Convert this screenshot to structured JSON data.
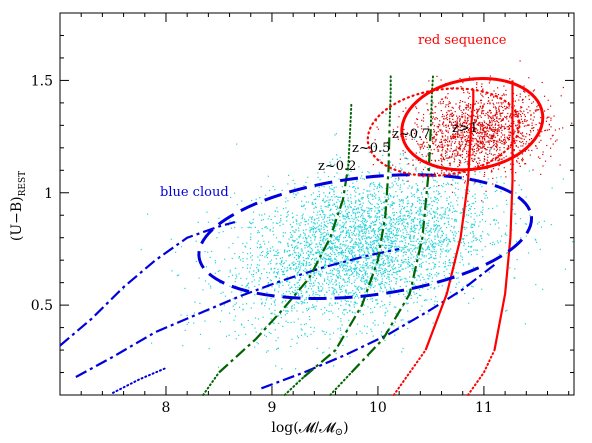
{
  "chart_data": {
    "type": "scatter",
    "title": "",
    "xlabel": "log(𝓜/𝓜",
    "xlabel_sub": "⊙",
    "xlabel_close": ")",
    "ylabel": "(U−B)",
    "ylabel_sub": "REST",
    "xlim": [
      7.0,
      11.85
    ],
    "ylim": [
      0.1,
      1.8
    ],
    "xticks": [
      "8",
      "9",
      "10",
      "11"
    ],
    "xtick_values": [
      8,
      9,
      10,
      11
    ],
    "yticks": [
      "0.5",
      "1",
      "1.5"
    ],
    "ytick_values": [
      0.5,
      1.0,
      1.5
    ],
    "grid": false,
    "colors": {
      "blue_cloud": "#0000dd",
      "blue_points": "#22d3d8",
      "red_sequence": "#ff0000",
      "red_points": "#dd0000",
      "green_tracks": "#006400"
    },
    "annotations": {
      "red_sequence": "red sequence",
      "blue_cloud": "blue cloud",
      "z1": "z~0.2",
      "z2": "z~0.5",
      "z3": "z~0.7",
      "z4": "z>1"
    },
    "ellipses": [
      {
        "name": "blue cloud",
        "color": "#0000dd",
        "style": "dashed",
        "cx": 9.88,
        "cy": 0.805,
        "rx": 1.58,
        "ry": 0.262,
        "angle_deg": 7
      },
      {
        "name": "red sequence",
        "color": "#ff0000",
        "style": "solid",
        "cx": 10.89,
        "cy": 1.305,
        "rx": 0.67,
        "ry": 0.2,
        "angle_deg": 9
      },
      {
        "name": "red sequence",
        "color": "#ff0000",
        "style": "dotted",
        "cx": 10.62,
        "cy": 1.27,
        "rx": 0.72,
        "ry": 0.19,
        "angle_deg": 8
      }
    ],
    "blue_points": {
      "center": [
        9.85,
        0.76
      ],
      "spread": [
        0.6,
        0.16
      ],
      "count": 3800
    },
    "red_points": {
      "center": [
        10.95,
        1.27
      ],
      "spread": [
        0.32,
        0.09
      ],
      "count": 1500
    },
    "series": [
      {
        "color": "#0000dd",
        "style": "dashdot",
        "points": [
          [
            7.0,
            0.32
          ],
          [
            7.3,
            0.44
          ],
          [
            7.6,
            0.58
          ],
          [
            7.9,
            0.7
          ],
          [
            8.2,
            0.8
          ],
          [
            8.5,
            0.85
          ],
          [
            8.65,
            0.87
          ]
        ]
      },
      {
        "color": "#0000dd",
        "style": "dashdot",
        "points": [
          [
            7.15,
            0.18
          ],
          [
            7.5,
            0.27
          ],
          [
            7.9,
            0.38
          ],
          [
            8.3,
            0.46
          ],
          [
            8.7,
            0.54
          ],
          [
            9.1,
            0.61
          ],
          [
            9.5,
            0.67
          ],
          [
            9.9,
            0.72
          ],
          [
            10.2,
            0.75
          ]
        ]
      },
      {
        "color": "#0000dd",
        "style": "dashdot",
        "points": [
          [
            8.9,
            0.13
          ],
          [
            9.3,
            0.2
          ],
          [
            9.7,
            0.28
          ],
          [
            10.1,
            0.37
          ],
          [
            10.5,
            0.48
          ],
          [
            10.8,
            0.57
          ],
          [
            11.1,
            0.68
          ]
        ]
      },
      {
        "color": "#0000dd",
        "style": "dotted",
        "points": [
          [
            7.5,
            0.11
          ],
          [
            7.75,
            0.17
          ],
          [
            8.0,
            0.22
          ]
        ]
      },
      {
        "color": "#006400",
        "style": "dotted",
        "points": [
          [
            8.35,
            0.1
          ],
          [
            8.5,
            0.2
          ]
        ]
      },
      {
        "color": "#006400",
        "style": "dashdot",
        "points": [
          [
            8.5,
            0.2
          ],
          [
            8.85,
            0.35
          ],
          [
            9.1,
            0.48
          ],
          [
            9.35,
            0.62
          ],
          [
            9.55,
            0.8
          ],
          [
            9.67,
            0.97
          ],
          [
            9.72,
            1.12
          ]
        ]
      },
      {
        "color": "#006400",
        "style": "dotted",
        "points": [
          [
            9.72,
            1.12
          ],
          [
            9.74,
            1.3
          ],
          [
            9.75,
            1.4
          ]
        ]
      },
      {
        "color": "#006400",
        "style": "dotted",
        "points": [
          [
            9.12,
            0.1
          ],
          [
            9.3,
            0.18
          ]
        ]
      },
      {
        "color": "#006400",
        "style": "dashdot",
        "points": [
          [
            9.3,
            0.18
          ],
          [
            9.6,
            0.3
          ],
          [
            9.85,
            0.5
          ],
          [
            10.0,
            0.7
          ],
          [
            10.07,
            0.9
          ],
          [
            10.1,
            1.1
          ],
          [
            10.11,
            1.3
          ]
        ]
      },
      {
        "color": "#006400",
        "style": "dotted",
        "points": [
          [
            10.11,
            1.3
          ],
          [
            10.12,
            1.45
          ],
          [
            10.12,
            1.52
          ]
        ]
      },
      {
        "color": "#006400",
        "style": "dotted",
        "points": [
          [
            9.55,
            0.1
          ],
          [
            9.75,
            0.2
          ]
        ]
      },
      {
        "color": "#006400",
        "style": "dashdot",
        "points": [
          [
            9.75,
            0.2
          ],
          [
            10.05,
            0.35
          ],
          [
            10.3,
            0.55
          ],
          [
            10.42,
            0.8
          ],
          [
            10.48,
            1.1
          ],
          [
            10.5,
            1.3
          ]
        ]
      },
      {
        "color": "#006400",
        "style": "dotted",
        "points": [
          [
            10.5,
            1.3
          ],
          [
            10.51,
            1.45
          ],
          [
            10.52,
            1.52
          ]
        ]
      },
      {
        "color": "#ff0000",
        "style": "dotted",
        "points": [
          [
            10.15,
            0.1
          ],
          [
            10.3,
            0.2
          ],
          [
            10.45,
            0.3
          ]
        ]
      },
      {
        "color": "#ff0000",
        "style": "solid",
        "points": [
          [
            10.45,
            0.3
          ],
          [
            10.65,
            0.55
          ],
          [
            10.78,
            0.8
          ],
          [
            10.85,
            1.05
          ],
          [
            10.88,
            1.3
          ],
          [
            10.9,
            1.4
          ],
          [
            10.9,
            1.46
          ]
        ]
      },
      {
        "color": "#ff0000",
        "style": "dotted",
        "points": [
          [
            10.85,
            0.1
          ],
          [
            11.0,
            0.2
          ],
          [
            11.1,
            0.3
          ]
        ]
      },
      {
        "color": "#ff0000",
        "style": "solid",
        "points": [
          [
            11.1,
            0.3
          ],
          [
            11.2,
            0.55
          ],
          [
            11.25,
            0.8
          ],
          [
            11.27,
            1.05
          ],
          [
            11.27,
            1.3
          ],
          [
            11.27,
            1.5
          ]
        ]
      }
    ]
  }
}
